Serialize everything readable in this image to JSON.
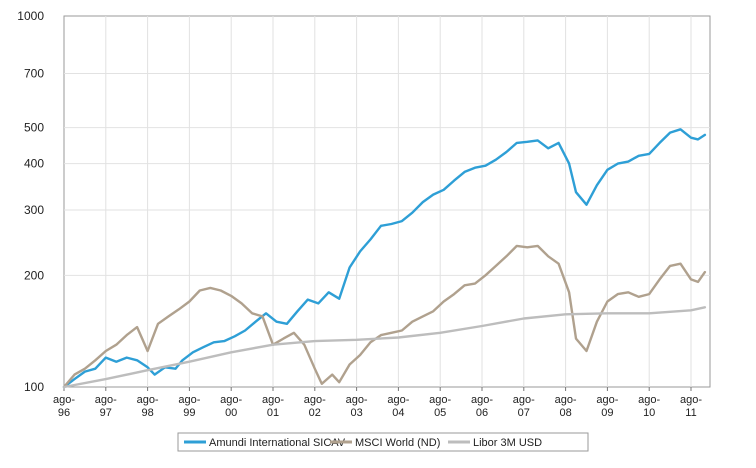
{
  "chart_data": {
    "type": "line",
    "title": "",
    "xlabel": "",
    "ylabel": "",
    "y_scale": "log",
    "ylim": [
      100,
      1000
    ],
    "y_ticks": [
      100,
      200,
      300,
      400,
      500,
      700,
      1000
    ],
    "x_range": [
      "1996-08",
      "2011-08"
    ],
    "x_ticks": [
      {
        "date": "1996-08",
        "line1": "ago-",
        "line2": "96"
      },
      {
        "date": "1997-08",
        "line1": "ago-",
        "line2": "97"
      },
      {
        "date": "1998-08",
        "line1": "ago-",
        "line2": "98"
      },
      {
        "date": "1999-08",
        "line1": "ago-",
        "line2": "99"
      },
      {
        "date": "2000-08",
        "line1": "ago-",
        "line2": "00"
      },
      {
        "date": "2001-08",
        "line1": "ago-",
        "line2": "01"
      },
      {
        "date": "2002-08",
        "line1": "ago-",
        "line2": "02"
      },
      {
        "date": "2003-08",
        "line1": "ago-",
        "line2": "03"
      },
      {
        "date": "2004-08",
        "line1": "ago-",
        "line2": "04"
      },
      {
        "date": "2005-08",
        "line1": "ago-",
        "line2": "05"
      },
      {
        "date": "2006-08",
        "line1": "ago-",
        "line2": "06"
      },
      {
        "date": "2007-08",
        "line1": "ago-",
        "line2": "07"
      },
      {
        "date": "2008-08",
        "line1": "ago-",
        "line2": "08"
      },
      {
        "date": "2009-08",
        "line1": "ago-",
        "line2": "09"
      },
      {
        "date": "2010-08",
        "line1": "ago-",
        "line2": "10"
      },
      {
        "date": "2011-08",
        "line1": "ago-",
        "line2": "11"
      }
    ],
    "grid": true,
    "legend_position": "bottom",
    "series": [
      {
        "name": "Amundi International SICAV",
        "color": "#2e9fd6",
        "points": [
          [
            "1996-08",
            100
          ],
          [
            "1996-11",
            105
          ],
          [
            "1997-02",
            110
          ],
          [
            "1997-05",
            112
          ],
          [
            "1997-08",
            120
          ],
          [
            "1997-11",
            117
          ],
          [
            "1998-02",
            120
          ],
          [
            "1998-05",
            118
          ],
          [
            "1998-08",
            113
          ],
          [
            "1998-10",
            108
          ],
          [
            "1999-01",
            113
          ],
          [
            "1999-04",
            112
          ],
          [
            "1999-06",
            118
          ],
          [
            "1999-09",
            124
          ],
          [
            "1999-12",
            128
          ],
          [
            "2000-03",
            132
          ],
          [
            "2000-06",
            133
          ],
          [
            "2000-09",
            137
          ],
          [
            "2000-12",
            142
          ],
          [
            "2001-03",
            150
          ],
          [
            "2001-06",
            158
          ],
          [
            "2001-09",
            150
          ],
          [
            "2001-12",
            148
          ],
          [
            "2002-03",
            160
          ],
          [
            "2002-06",
            172
          ],
          [
            "2002-09",
            168
          ],
          [
            "2002-12",
            180
          ],
          [
            "2003-03",
            173
          ],
          [
            "2003-06",
            210
          ],
          [
            "2003-09",
            232
          ],
          [
            "2003-12",
            250
          ],
          [
            "2004-03",
            272
          ],
          [
            "2004-06",
            275
          ],
          [
            "2004-09",
            280
          ],
          [
            "2004-12",
            295
          ],
          [
            "2005-03",
            315
          ],
          [
            "2005-06",
            330
          ],
          [
            "2005-09",
            340
          ],
          [
            "2005-12",
            360
          ],
          [
            "2006-03",
            380
          ],
          [
            "2006-06",
            390
          ],
          [
            "2006-09",
            395
          ],
          [
            "2006-12",
            410
          ],
          [
            "2007-03",
            430
          ],
          [
            "2007-06",
            455
          ],
          [
            "2007-09",
            458
          ],
          [
            "2007-12",
            462
          ],
          [
            "2008-03",
            440
          ],
          [
            "2008-06",
            455
          ],
          [
            "2008-09",
            400
          ],
          [
            "2008-11",
            335
          ],
          [
            "2009-02",
            310
          ],
          [
            "2009-05",
            350
          ],
          [
            "2009-08",
            385
          ],
          [
            "2009-11",
            400
          ],
          [
            "2010-02",
            405
          ],
          [
            "2010-05",
            420
          ],
          [
            "2010-08",
            425
          ],
          [
            "2010-11",
            455
          ],
          [
            "2011-02",
            485
          ],
          [
            "2011-05",
            495
          ],
          [
            "2011-08",
            470
          ],
          [
            "2011-10",
            465
          ],
          [
            "2011-12",
            478
          ]
        ]
      },
      {
        "name": "MSCI World (ND)",
        "color": "#b0a18e",
        "points": [
          [
            "1996-08",
            100
          ],
          [
            "1996-11",
            108
          ],
          [
            "1997-02",
            112
          ],
          [
            "1997-05",
            118
          ],
          [
            "1997-08",
            125
          ],
          [
            "1997-11",
            130
          ],
          [
            "1998-02",
            138
          ],
          [
            "1998-05",
            145
          ],
          [
            "1998-08",
            125
          ],
          [
            "1998-11",
            148
          ],
          [
            "1999-02",
            155
          ],
          [
            "1999-05",
            162
          ],
          [
            "1999-08",
            170
          ],
          [
            "1999-11",
            182
          ],
          [
            "2000-02",
            185
          ],
          [
            "2000-05",
            182
          ],
          [
            "2000-08",
            176
          ],
          [
            "2000-11",
            168
          ],
          [
            "2001-02",
            158
          ],
          [
            "2001-05",
            155
          ],
          [
            "2001-08",
            130
          ],
          [
            "2001-11",
            135
          ],
          [
            "2002-02",
            140
          ],
          [
            "2002-05",
            130
          ],
          [
            "2002-08",
            112
          ],
          [
            "2002-10",
            102
          ],
          [
            "2003-01",
            108
          ],
          [
            "2003-03",
            103
          ],
          [
            "2003-06",
            115
          ],
          [
            "2003-09",
            122
          ],
          [
            "2003-12",
            132
          ],
          [
            "2004-03",
            138
          ],
          [
            "2004-06",
            140
          ],
          [
            "2004-09",
            142
          ],
          [
            "2004-12",
            150
          ],
          [
            "2005-03",
            155
          ],
          [
            "2005-06",
            160
          ],
          [
            "2005-09",
            170
          ],
          [
            "2005-12",
            178
          ],
          [
            "2006-03",
            188
          ],
          [
            "2006-06",
            190
          ],
          [
            "2006-09",
            200
          ],
          [
            "2006-12",
            212
          ],
          [
            "2007-03",
            225
          ],
          [
            "2007-06",
            240
          ],
          [
            "2007-09",
            238
          ],
          [
            "2007-12",
            240
          ],
          [
            "2008-03",
            225
          ],
          [
            "2008-06",
            215
          ],
          [
            "2008-09",
            180
          ],
          [
            "2008-11",
            135
          ],
          [
            "2009-02",
            125
          ],
          [
            "2009-05",
            150
          ],
          [
            "2009-08",
            170
          ],
          [
            "2009-11",
            178
          ],
          [
            "2010-02",
            180
          ],
          [
            "2010-05",
            175
          ],
          [
            "2010-08",
            178
          ],
          [
            "2010-11",
            195
          ],
          [
            "2011-02",
            212
          ],
          [
            "2011-05",
            215
          ],
          [
            "2011-08",
            195
          ],
          [
            "2011-10",
            192
          ],
          [
            "2011-12",
            204
          ]
        ]
      },
      {
        "name": "Libor 3M USD",
        "color": "#bdbdbd",
        "points": [
          [
            "1996-08",
            100
          ],
          [
            "1997-08",
            105
          ],
          [
            "1998-08",
            111
          ],
          [
            "1999-08",
            117
          ],
          [
            "2000-08",
            124
          ],
          [
            "2001-08",
            130
          ],
          [
            "2002-08",
            133
          ],
          [
            "2003-08",
            134
          ],
          [
            "2004-08",
            136
          ],
          [
            "2005-08",
            140
          ],
          [
            "2006-08",
            146
          ],
          [
            "2007-08",
            153
          ],
          [
            "2008-08",
            157
          ],
          [
            "2009-08",
            158
          ],
          [
            "2010-08",
            158
          ],
          [
            "2011-08",
            161
          ],
          [
            "2011-12",
            164
          ]
        ]
      }
    ]
  }
}
